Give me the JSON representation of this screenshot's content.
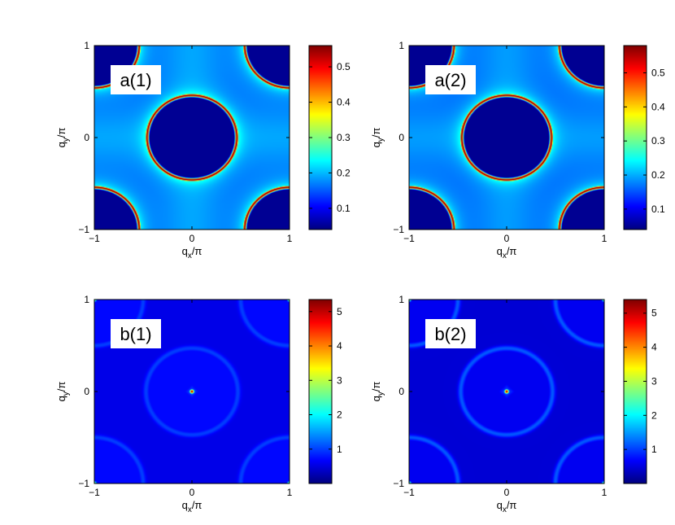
{
  "colormap": "jet",
  "jet_stops": [
    "#00008f",
    "#0000ff",
    "#00ffff",
    "#ffff00",
    "#ff0000",
    "#800000"
  ],
  "chart_data": [
    {
      "type": "heatmap",
      "panel_label": "a(1)",
      "xlabel_base": "q",
      "xlabel_sub": "x",
      "xlabel_suffix": "/π",
      "ylabel_base": "q",
      "ylabel_sub": "y",
      "ylabel_suffix": "/π",
      "xlim": [
        -1,
        1
      ],
      "ylim": [
        -1,
        1
      ],
      "xticks": [
        "−1",
        "0",
        "1"
      ],
      "yticks": [
        "−1",
        "0",
        "1"
      ],
      "colorbar_range": [
        0.04,
        0.56
      ],
      "colorbar_ticks": [
        "0.1",
        "0.2",
        "0.3",
        "0.4",
        "0.5"
      ],
      "colorbar_tick_values": [
        0.1,
        0.2,
        0.3,
        0.4,
        0.5
      ],
      "field": {
        "kind": "rings",
        "background": 0.17,
        "inside": 0.05,
        "peak": 0.56,
        "center_radius": 0.46,
        "corner_radius": 0.46,
        "halo": 0.2
      }
    },
    {
      "type": "heatmap",
      "panel_label": "a(2)",
      "xlabel_base": "q",
      "xlabel_sub": "x",
      "xlabel_suffix": "/π",
      "ylabel_base": "q",
      "ylabel_sub": "y",
      "ylabel_suffix": "/π",
      "xlim": [
        -1,
        1
      ],
      "ylim": [
        -1,
        1
      ],
      "xticks": [
        "−1",
        "0",
        "1"
      ],
      "yticks": [
        "−1",
        "0",
        "1"
      ],
      "colorbar_range": [
        0.04,
        0.58
      ],
      "colorbar_ticks": [
        "0.1",
        "0.2",
        "0.3",
        "0.4",
        "0.5"
      ],
      "colorbar_tick_values": [
        0.1,
        0.2,
        0.3,
        0.4,
        0.5
      ],
      "field": {
        "kind": "rings",
        "background": 0.17,
        "inside": 0.05,
        "peak": 0.58,
        "center_radius": 0.46,
        "corner_radius": 0.46,
        "halo": 0.2
      }
    },
    {
      "type": "heatmap",
      "panel_label": "b(1)",
      "xlabel_base": "q",
      "xlabel_sub": "x",
      "xlabel_suffix": "/π",
      "ylabel_base": "q",
      "ylabel_sub": "y",
      "ylabel_suffix": "/π",
      "xlim": [
        -1,
        1
      ],
      "ylim": [
        -1,
        1
      ],
      "xticks": [
        "−1",
        "0",
        "1"
      ],
      "yticks": [
        "−1",
        "0",
        "1"
      ],
      "colorbar_range": [
        0.0,
        5.35
      ],
      "colorbar_ticks": [
        "1",
        "2",
        "3",
        "4",
        "5"
      ],
      "colorbar_tick_values": [
        1,
        2,
        3,
        4,
        5
      ],
      "field": {
        "kind": "peak",
        "background": 0.55,
        "dark": 0.35,
        "ring_value": 1.0,
        "center_radius": 0.47,
        "corner_radius": 0.5,
        "peak": 5.35
      }
    },
    {
      "type": "heatmap",
      "panel_label": "b(2)",
      "xlabel_base": "q",
      "xlabel_sub": "x",
      "xlabel_suffix": "/π",
      "ylabel_base": "q",
      "ylabel_sub": "y",
      "ylabel_suffix": "/π",
      "xlim": [
        -1,
        1
      ],
      "ylim": [
        -1,
        1
      ],
      "xticks": [
        "−1",
        "0",
        "1"
      ],
      "yticks": [
        "−1",
        "0",
        "1"
      ],
      "colorbar_range": [
        0.0,
        5.4
      ],
      "colorbar_ticks": [
        "1",
        "2",
        "3",
        "4",
        "5"
      ],
      "colorbar_tick_values": [
        1,
        2,
        3,
        4,
        5
      ],
      "field": {
        "kind": "peak",
        "background": 0.45,
        "dark": 0.3,
        "ring_value": 1.15,
        "center_radius": 0.47,
        "corner_radius": 0.5,
        "peak": 5.4
      }
    }
  ]
}
